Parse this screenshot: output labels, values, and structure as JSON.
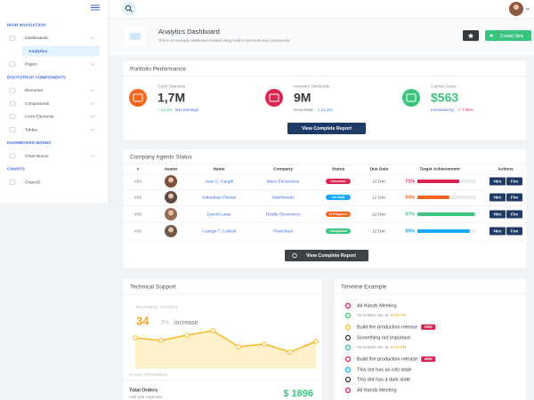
{
  "sidebar": {
    "items": [
      {
        "text": "MAIN NAVIGATION",
        "kind": "heading"
      },
      {
        "text": "Dashboards",
        "kind": "parent"
      },
      {
        "text": "Analytics",
        "kind": "active"
      },
      {
        "text": "Pages",
        "kind": "parent"
      },
      {
        "text": "BOOTSTRAP COMPONENTS",
        "kind": "heading"
      },
      {
        "text": "Elements",
        "kind": "parent"
      },
      {
        "text": "Components",
        "kind": "parent"
      },
      {
        "text": "Form Elements",
        "kind": "parent"
      },
      {
        "text": "Tables",
        "kind": "parent"
      },
      {
        "text": "DASHBOARD BOXES",
        "kind": "heading"
      },
      {
        "text": "Chart Boxes",
        "kind": "parent"
      },
      {
        "text": "CHARTS",
        "kind": "heading"
      },
      {
        "text": "ChartJS",
        "kind": "item"
      }
    ]
  },
  "page_title": {
    "title": "Analytics Dashboard",
    "subtitle": "This is an example dashboard created using build-in elements and components.",
    "button": "Create New"
  },
  "portfolio": {
    "title": "Portfolio Performance",
    "stats": [
      {
        "label": "Cash Deposits",
        "value": "1,7M",
        "note_a": "+ 54.1%",
        "note_b": "less earnings",
        "color": "#f7641b",
        "value_color": "#343a40",
        "a_color": "#3ac47d",
        "b_color": "#3f6ad8"
      },
      {
        "label": "Invested Dividends",
        "value": "9M",
        "note_a": "Grow Rate:",
        "note_b": "↘ 14.1%",
        "color": "#d92550",
        "value_color": "#343a40",
        "a_color": "#6c757d",
        "b_color": "#3f6ad8"
      },
      {
        "label": "Capital Gains",
        "value": "$563",
        "note_a": "Increased by:",
        "note_b": "↗ 7.35%",
        "color": "#3ac47d",
        "value_color": "#3ac47d",
        "a_color": "#3f6ad8",
        "b_color": "#d92550"
      }
    ],
    "button": "View Complete Report"
  },
  "agents": {
    "title": "Company Agents Status",
    "columns": [
      "#",
      "Avatar",
      "Name",
      "Company",
      "Status",
      "Due Date",
      "Target Achievement",
      "Actions"
    ],
    "rows": [
      {
        "id": "#54",
        "name": "Juan C. Cargill",
        "company": "Micro Electronics",
        "status": "Canceled",
        "status_color": "#d92550",
        "due": "12 Dec",
        "target": 71,
        "target_label": "71%",
        "color": "#d92550"
      },
      {
        "id": "#55",
        "name": "Johnathan Phelan",
        "company": "Hatchworks",
        "status": "On Hold",
        "status_color": "#16aaff",
        "due": "12 Dec",
        "target": 54,
        "target_label": "54%",
        "color": "#f7631e"
      },
      {
        "id": "#56",
        "name": "Darrell Lowe",
        "company": "Riddle Electronics",
        "status": "In Progress",
        "status_color": "#f7631e",
        "due": "12 Dec",
        "target": 97,
        "target_label": "97%",
        "color": "#3ac47d"
      },
      {
        "id": "#56",
        "name": "George T. Cottrell",
        "company": "Pixelcloud",
        "status": "Completed",
        "status_color": "#3ac47d",
        "due": "12 Dec",
        "target": 89,
        "target_label": "89%",
        "color": "#16aaff"
      }
    ],
    "actions": [
      "Hire",
      "Fire"
    ],
    "button": "View Complete Report"
  },
  "support": {
    "title": "Technical Support",
    "kicker": "HELPDESK TICKETS",
    "value": "34",
    "change": "5%",
    "change_text": "increase",
    "sparkline": [
      20,
      17,
      23,
      28,
      10,
      13,
      4,
      16
    ],
    "section": "SALES PROGRESS",
    "orders_label": "Total Orders",
    "orders_sub": "Last year expenses",
    "orders_value": "$ 1896"
  },
  "timeline": {
    "title": "Timeline Example",
    "items": [
      {
        "text": "All Hands Meeting",
        "color": "#d92550"
      },
      {
        "text": "Yet another one, at",
        "time": "15:00 PM",
        "color": "#3ac47d"
      },
      {
        "text": "Build the production release",
        "badge": "NEW",
        "color": "#f7b924"
      },
      {
        "text": "Something not important",
        "color": "#343a40"
      },
      {
        "text": "Yet another one, at",
        "time": "15:00 PM",
        "color": "#3ac47d"
      },
      {
        "text": "Build the production release",
        "badge": "NEW",
        "color": "#d92550"
      },
      {
        "text": "This dot has an info state",
        "color": "#16aaff"
      },
      {
        "text": "This dot has a dark state",
        "color": "#343a40"
      },
      {
        "text": "All Hands Meeting",
        "color": "#d92550"
      }
    ]
  }
}
